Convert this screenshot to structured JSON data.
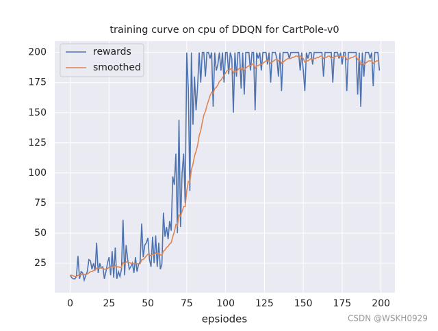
{
  "chart_data": {
    "type": "line",
    "title": "training curve on cpu of DDQN for CartPole-v0",
    "x_label": "epsiodes",
    "watermark": "CSDN @WSKH0929",
    "x": [
      0,
      1,
      2,
      3,
      4,
      5,
      6,
      7,
      8,
      9,
      10,
      11,
      12,
      13,
      14,
      15,
      16,
      17,
      18,
      19,
      20,
      21,
      22,
      23,
      24,
      25,
      26,
      27,
      28,
      29,
      30,
      31,
      32,
      33,
      34,
      35,
      36,
      37,
      38,
      39,
      40,
      41,
      42,
      43,
      44,
      45,
      46,
      47,
      48,
      49,
      50,
      51,
      52,
      53,
      54,
      55,
      56,
      57,
      58,
      59,
      60,
      61,
      62,
      63,
      64,
      65,
      66,
      67,
      68,
      69,
      70,
      71,
      72,
      73,
      74,
      75,
      76,
      77,
      78,
      79,
      80,
      81,
      82,
      83,
      84,
      85,
      86,
      87,
      88,
      89,
      90,
      91,
      92,
      93,
      94,
      95,
      96,
      97,
      98,
      99,
      100,
      101,
      102,
      103,
      104,
      105,
      106,
      107,
      108,
      109,
      110,
      111,
      112,
      113,
      114,
      115,
      116,
      117,
      118,
      119,
      120,
      121,
      122,
      123,
      124,
      125,
      126,
      127,
      128,
      129,
      130,
      131,
      132,
      133,
      134,
      135,
      136,
      137,
      138,
      139,
      140,
      141,
      142,
      143,
      144,
      145,
      146,
      147,
      148,
      149,
      150,
      151,
      152,
      153,
      154,
      155,
      156,
      157,
      158,
      159,
      160,
      161,
      162,
      163,
      164,
      165,
      166,
      167,
      168,
      169,
      170,
      171,
      172,
      173,
      174,
      175,
      176,
      177,
      178,
      179,
      180,
      181,
      182,
      183,
      184,
      185,
      186,
      187,
      188,
      189,
      190,
      191,
      192,
      193,
      194,
      195,
      196,
      197,
      198,
      199
    ],
    "series": [
      {
        "name": "rewards",
        "color": "#4c72b0",
        "values": [
          15,
          13,
          12,
          12,
          14,
          31,
          12,
          18,
          17,
          11,
          15,
          18,
          28,
          27,
          20,
          25,
          19,
          42,
          17,
          25,
          21,
          22,
          12,
          18,
          25,
          30,
          15,
          35,
          13,
          38,
          12,
          18,
          14,
          20,
          61,
          15,
          40,
          28,
          20,
          22,
          25,
          17,
          30,
          18,
          24,
          26,
          58,
          30,
          40,
          42,
          46,
          28,
          22,
          47,
          25,
          48,
          22,
          42,
          20,
          24,
          67,
          47,
          55,
          45,
          60,
          52,
          97,
          90,
          116,
          50,
          144,
          55,
          100,
          116,
          75,
          200,
          170,
          85,
          200,
          140,
          180,
          152,
          172,
          200,
          175,
          200,
          200,
          180,
          200,
          200,
          195,
          200,
          155,
          200,
          185,
          190,
          200,
          185,
          200,
          175,
          200,
          200,
          182,
          200,
          195,
          150,
          200,
          180,
          200,
          200,
          170,
          200,
          165,
          200,
          200,
          200,
          185,
          200,
          200,
          152,
          200,
          195,
          200,
          185,
          200,
          200,
          200,
          190,
          200,
          175,
          200,
          200,
          200,
          195,
          180,
          200,
          168,
          200,
          200,
          200,
          200,
          195,
          200,
          200,
          200,
          200,
          200,
          200,
          185,
          200,
          185,
          168,
          200,
          195,
          200,
          200,
          190,
          200,
          200,
          200,
          200,
          200,
          200,
          180,
          200,
          200,
          200,
          200,
          200,
          175,
          200,
          200,
          200,
          195,
          200,
          190,
          200,
          200,
          168,
          200,
          200,
          200,
          200,
          200,
          200,
          165,
          200,
          155,
          200,
          180,
          200,
          200,
          200,
          195,
          200,
          172,
          200,
          200,
          200,
          185
        ]
      },
      {
        "name": "smoothed",
        "color": "#dd8452",
        "values": [
          15,
          15,
          14.5,
          14,
          14,
          15,
          15,
          15.5,
          16,
          15.5,
          15.5,
          16,
          17,
          18,
          18,
          19,
          19,
          21,
          21,
          21,
          21,
          21,
          20,
          20,
          20.5,
          21.5,
          21,
          22.5,
          21.5,
          23,
          22,
          22,
          21.5,
          21.5,
          25.5,
          24.5,
          26,
          26,
          25.5,
          25,
          25,
          24.5,
          25,
          24.5,
          24.5,
          24.5,
          28,
          28,
          29.5,
          31,
          32.5,
          32,
          31,
          32.5,
          32,
          33.5,
          32.5,
          33.5,
          32,
          31.5,
          35,
          36,
          38,
          39,
          41,
          42,
          47,
          51,
          57,
          56,
          65,
          64,
          68,
          72,
          72,
          85,
          93,
          92,
          103,
          107,
          114,
          118,
          123,
          131,
          135,
          142,
          148,
          151,
          156,
          160,
          164,
          167,
          166,
          170,
          171,
          173,
          176,
          177,
          179,
          181,
          183,
          185,
          185,
          186,
          187,
          183,
          185,
          184,
          186,
          187,
          186,
          187,
          185,
          187,
          188,
          189,
          189,
          190,
          191,
          187,
          189,
          189,
          190,
          190,
          191,
          192,
          193,
          193,
          193,
          191,
          192,
          193,
          194,
          194,
          193,
          194,
          191,
          192,
          193,
          194,
          195,
          195,
          195,
          196,
          196,
          197,
          197,
          196,
          197,
          196,
          195,
          192,
          193,
          193,
          194,
          195,
          194,
          195,
          195,
          196,
          196,
          197,
          197,
          195,
          196,
          196,
          197,
          197,
          195,
          196,
          196,
          197,
          197,
          197,
          197,
          196,
          197,
          197,
          194,
          195,
          195,
          196,
          196,
          197,
          197,
          194,
          195,
          190,
          191,
          190,
          191,
          192,
          193,
          193,
          193,
          191,
          192,
          193,
          193,
          192
        ]
      }
    ],
    "xlim": [
      -9.95,
      208.95
    ],
    "ylim": [
      0.5,
      209.5
    ],
    "xticks": [
      0,
      25,
      50,
      75,
      100,
      125,
      150,
      175,
      200
    ],
    "yticks": [
      25,
      50,
      75,
      100,
      125,
      150,
      175,
      200
    ],
    "grid": true,
    "legend": "upper left"
  }
}
